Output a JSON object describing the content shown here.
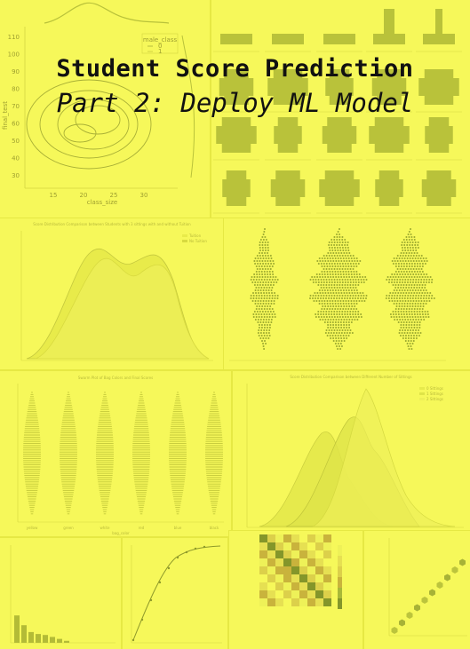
{
  "title": "Student Score Prediction",
  "subtitle": "Part 2: Deploy ML Model",
  "colors": {
    "background": "#f2f44c",
    "panel": "#f6f85a",
    "shape": "#b9c23a",
    "shape_dark": "#9aa82e",
    "text": "#111111"
  },
  "thumbnails": {
    "kde": {
      "y_ticks": [
        "110",
        "100",
        "90",
        "80",
        "70",
        "60",
        "50",
        "40",
        "30"
      ],
      "x_ticks": [
        "15",
        "20",
        "25",
        "30"
      ],
      "xlabel": "class_size",
      "ylabel": "final_test",
      "legend_title": "male_class",
      "legend_items": [
        "0",
        "1"
      ]
    },
    "density_tuition": {
      "title": "Score Distribution Comparison between Students with 3 sittings with and without Tuition",
      "legend_items": [
        "Tuition",
        "No Tuition"
      ]
    },
    "swarm_bag": {
      "title": "Swarm Plot of Bag Colors and Final Scores",
      "categories": [
        "yellow",
        "green",
        "white",
        "red",
        "blue",
        "black"
      ],
      "xlabel": "bag_color"
    },
    "density_sittings": {
      "title": "Score Distribution Comparison between Different Number of Sittings",
      "legend_items": [
        "0 Sittings",
        "1 Sittings",
        "2 Sittings"
      ]
    }
  }
}
